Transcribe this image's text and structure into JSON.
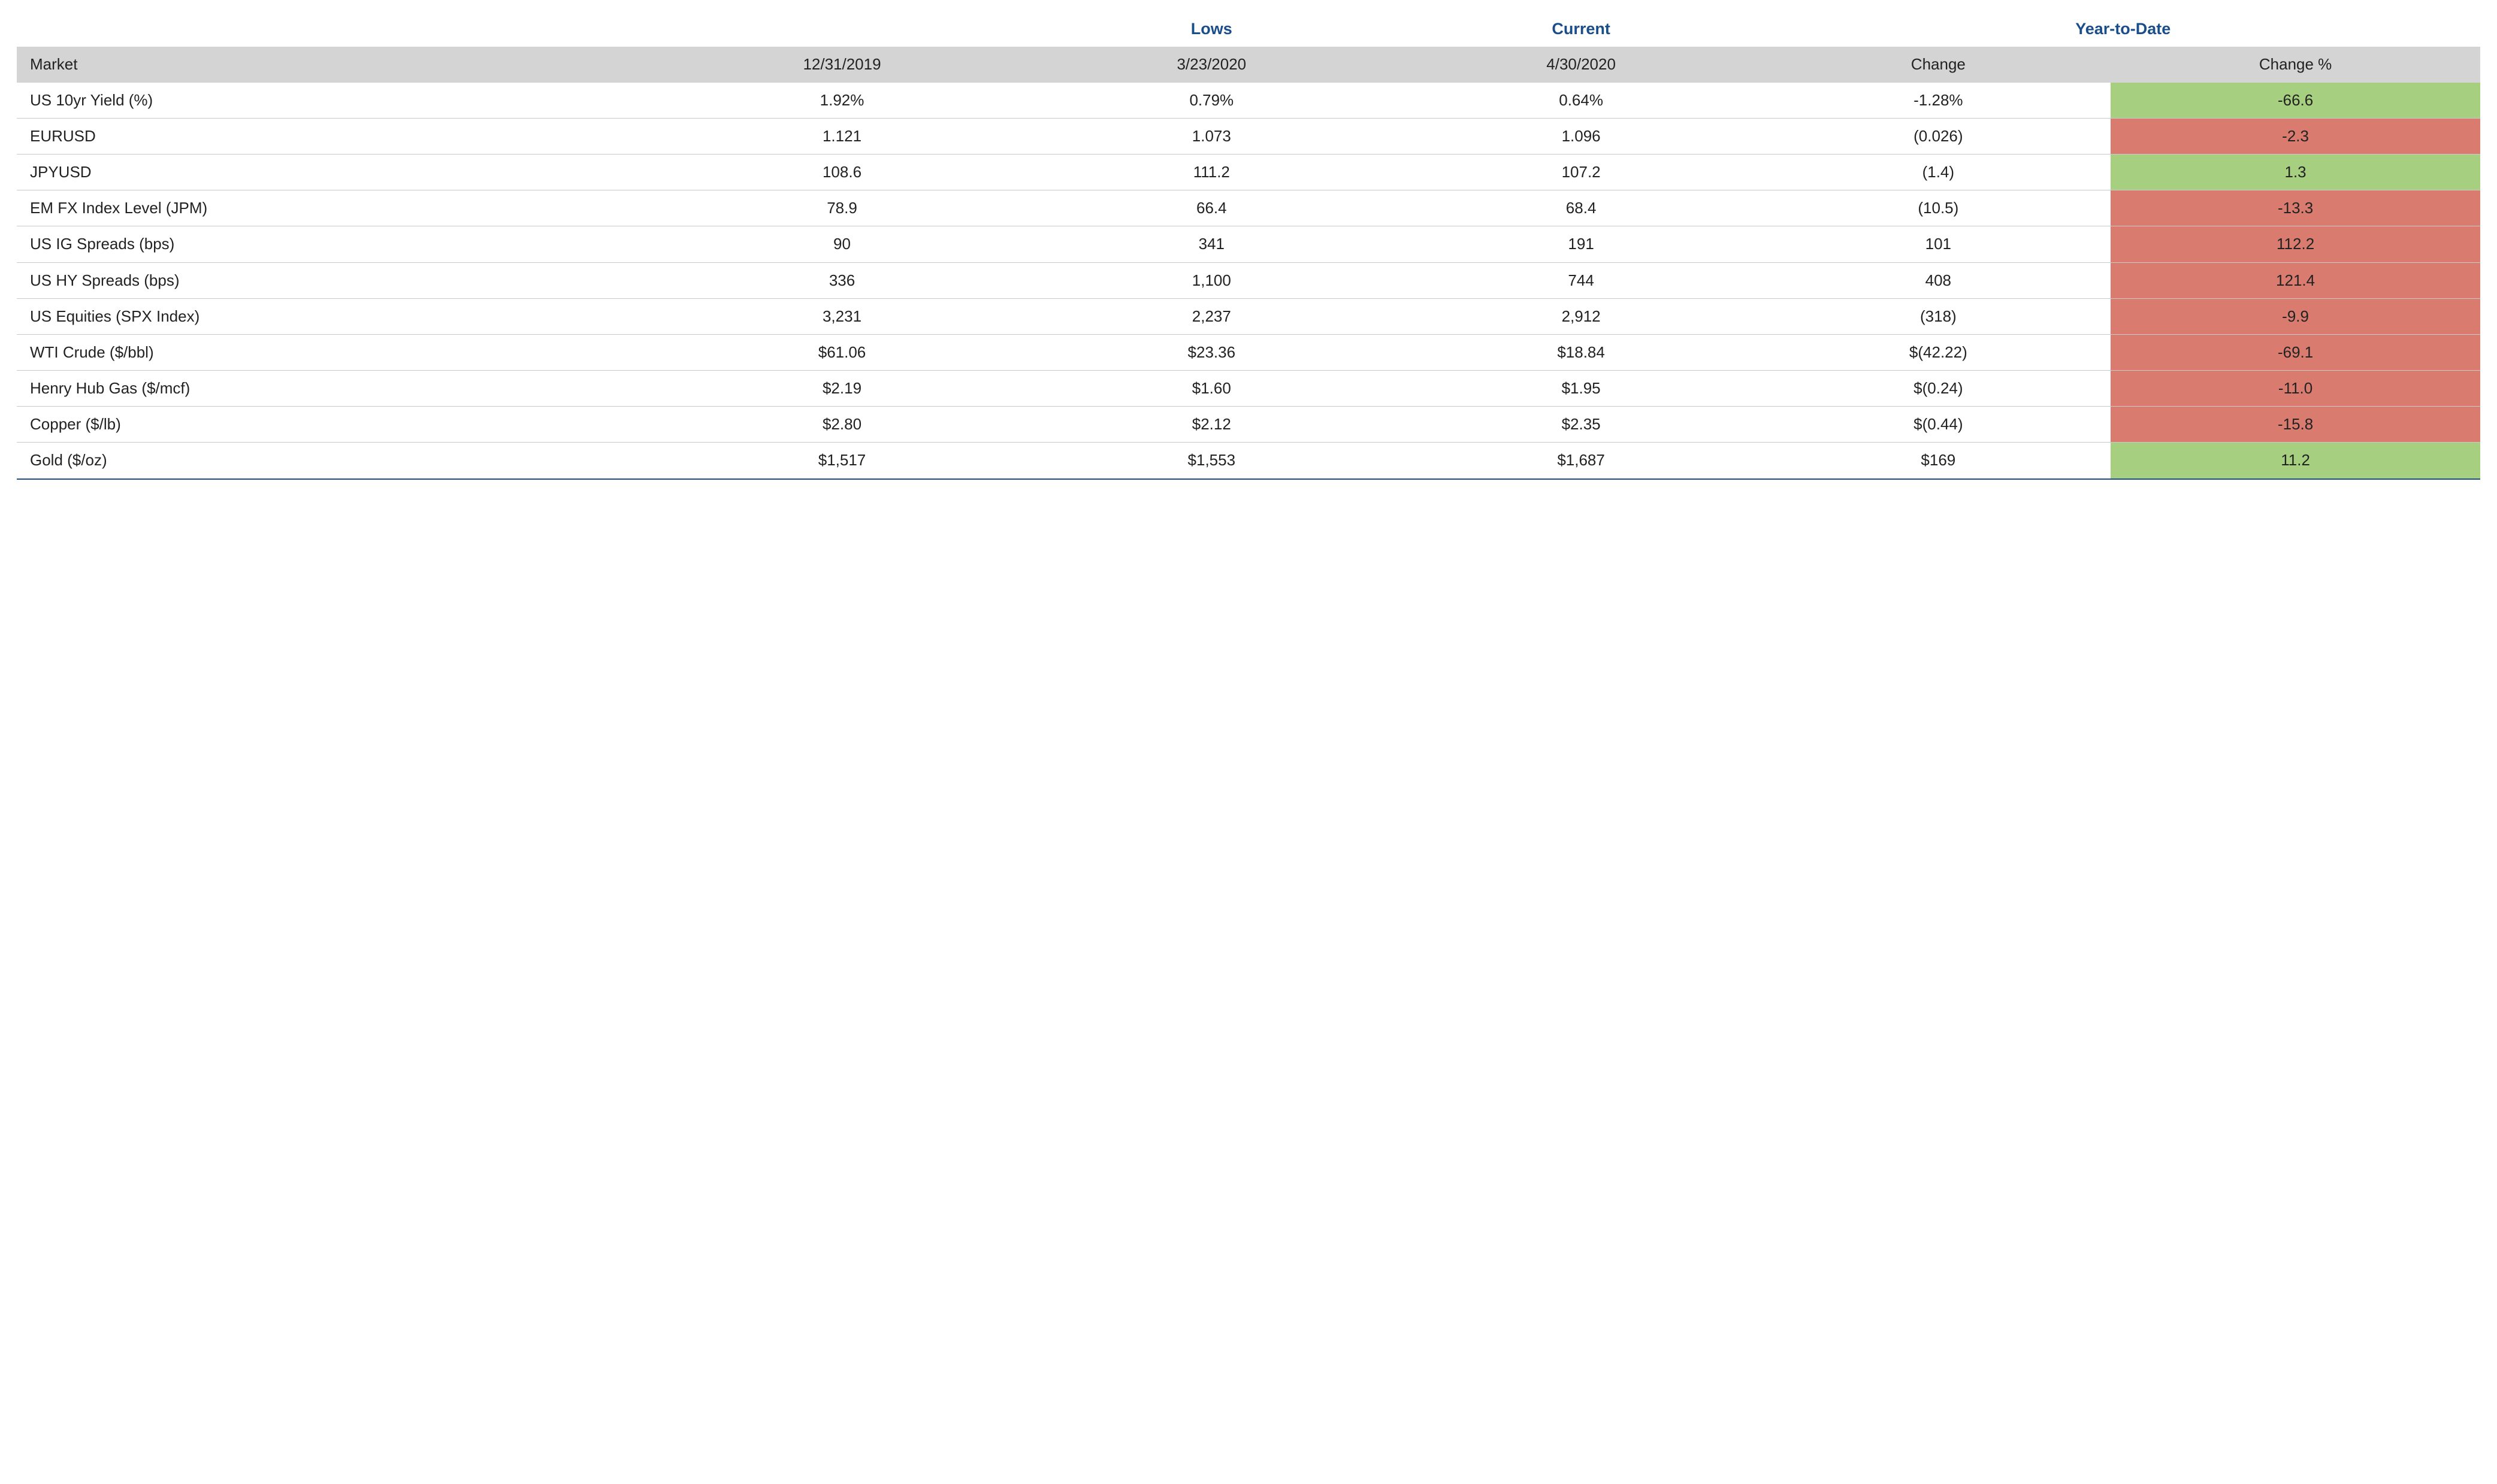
{
  "colors": {
    "header_text": "#1a4e8a",
    "header_row_bg": "#d4d4d4",
    "row_border": "#c9c9c9",
    "bottom_rule": "#1a4e8a",
    "body_text": "#222222",
    "pos_bg": "#a6cf7f",
    "neg_bg": "#d97c6f",
    "page_bg": "#ffffff"
  },
  "typography": {
    "font_family": "Myriad Pro / Segoe UI / Helvetica",
    "body_fontsize_pt": 20,
    "superhead_fontsize_pt": 20,
    "superhead_weight": 600
  },
  "table": {
    "type": "table",
    "column_widths_pct": [
      26,
      15,
      15,
      15,
      14,
      15
    ],
    "superheaders": {
      "lows": "Lows",
      "current": "Current",
      "ytd": "Year-to-Date"
    },
    "columns": {
      "market": "Market",
      "base": "12/31/2019",
      "lows": "3/23/2020",
      "current": "4/30/2020",
      "change": "Change",
      "changep": "Change %"
    },
    "rows": [
      {
        "market": "US 10yr Yield (%)",
        "base": "1.92%",
        "lows": "0.79%",
        "current": "0.64%",
        "change": "-1.28%",
        "changep": "-66.6",
        "dir": "pos"
      },
      {
        "market": "EURUSD",
        "base": "1.121",
        "lows": "1.073",
        "current": "1.096",
        "change": "(0.026)",
        "changep": "-2.3",
        "dir": "neg"
      },
      {
        "market": "JPYUSD",
        "base": "108.6",
        "lows": "111.2",
        "current": "107.2",
        "change": "(1.4)",
        "changep": "1.3",
        "dir": "pos"
      },
      {
        "market": "EM FX Index Level (JPM)",
        "base": "78.9",
        "lows": "66.4",
        "current": "68.4",
        "change": "(10.5)",
        "changep": "-13.3",
        "dir": "neg"
      },
      {
        "market": "US IG Spreads (bps)",
        "base": "90",
        "lows": "341",
        "current": "191",
        "change": "101",
        "changep": "112.2",
        "dir": "neg"
      },
      {
        "market": "US HY Spreads (bps)",
        "base": "336",
        "lows": "1,100",
        "current": "744",
        "change": "408",
        "changep": "121.4",
        "dir": "neg"
      },
      {
        "market": "US Equities (SPX Index)",
        "base": "3,231",
        "lows": "2,237",
        "current": "2,912",
        "change": "(318)",
        "changep": "-9.9",
        "dir": "neg"
      },
      {
        "market": "WTI Crude ($/bbl)",
        "base": "$61.06",
        "lows": "$23.36",
        "current": "$18.84",
        "change": "$(42.22)",
        "changep": "-69.1",
        "dir": "neg"
      },
      {
        "market": "Henry Hub Gas ($/mcf)",
        "base": "$2.19",
        "lows": "$1.60",
        "current": "$1.95",
        "change": "$(0.24)",
        "changep": "-11.0",
        "dir": "neg"
      },
      {
        "market": "Copper ($/lb)",
        "base": "$2.80",
        "lows": "$2.12",
        "current": "$2.35",
        "change": "$(0.44)",
        "changep": "-15.8",
        "dir": "neg"
      },
      {
        "market": "Gold ($/oz)",
        "base": "$1,517",
        "lows": "$1,553",
        "current": "$1,687",
        "change": "$169",
        "changep": "11.2",
        "dir": "pos"
      }
    ]
  }
}
